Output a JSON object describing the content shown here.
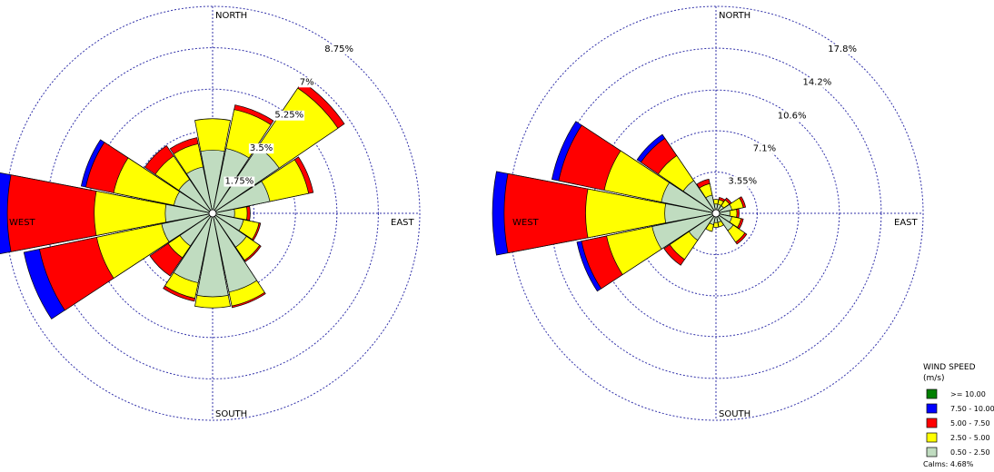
{
  "chart_data": [
    {
      "type": "wind-rose",
      "directions": [
        "N",
        "NNE",
        "NE",
        "ENE",
        "E",
        "ESE",
        "SE",
        "SSE",
        "S",
        "SSW",
        "SW",
        "WSW",
        "W",
        "WNW",
        "NW",
        "NNW"
      ],
      "bins": [
        "0.50 - 2.50",
        "2.50 - 5.00",
        "5.00 - 7.50",
        "7.50 - 10.00",
        ">= 10.00"
      ],
      "rings": [
        {
          "value": 1.75,
          "label": "1.75%"
        },
        {
          "value": 3.5,
          "label": "3.5%"
        },
        {
          "value": 5.25,
          "label": "5.25%"
        },
        {
          "value": 7.0,
          "label": "7%"
        },
        {
          "value": 8.75,
          "label": "8.75%"
        }
      ],
      "compass": {
        "north": "NORTH",
        "south": "SOUTH",
        "east": "EAST",
        "west": "WEST"
      },
      "sectors": [
        {
          "dir": "N",
          "values": [
            2.67,
            1.33,
            0.0,
            0.0,
            0.0
          ]
        },
        {
          "dir": "NNE",
          "values": [
            2.8,
            1.68,
            0.2,
            0.0,
            0.0
          ]
        },
        {
          "dir": "NE",
          "values": [
            3.4,
            3.0,
            0.33,
            0.0,
            0.0
          ]
        },
        {
          "dir": "ENE",
          "values": [
            2.47,
            1.67,
            0.2,
            0.0,
            0.0
          ]
        },
        {
          "dir": "E",
          "values": [
            0.93,
            0.53,
            0.13,
            0.0,
            0.0
          ]
        },
        {
          "dir": "ESE",
          "values": [
            1.33,
            0.67,
            0.07,
            0.0,
            0.0
          ]
        },
        {
          "dir": "SE",
          "values": [
            1.73,
            0.67,
            0.07,
            0.0,
            0.0
          ]
        },
        {
          "dir": "SSE",
          "values": [
            3.4,
            0.6,
            0.07,
            0.0,
            0.0
          ]
        },
        {
          "dir": "S",
          "values": [
            3.53,
            0.47,
            0.0,
            0.0,
            0.0
          ]
        },
        {
          "dir": "SSW",
          "values": [
            3.0,
            0.67,
            0.13,
            0.0,
            0.0
          ]
        },
        {
          "dir": "SW",
          "values": [
            1.67,
            0.6,
            0.93,
            0.0,
            0.0
          ]
        },
        {
          "dir": "WSW",
          "values": [
            2.2,
            2.8,
            2.47,
            0.67,
            0.0
          ]
        },
        {
          "dir": "W",
          "values": [
            2.0,
            3.0,
            3.67,
            0.53,
            0.0
          ]
        },
        {
          "dir": "WNW",
          "values": [
            1.67,
            2.6,
            1.2,
            0.2,
            0.0
          ]
        },
        {
          "dir": "NW",
          "values": [
            1.73,
            1.2,
            0.53,
            0.0,
            0.0
          ]
        },
        {
          "dir": "NNW",
          "values": [
            2.0,
            1.0,
            0.27,
            0.0,
            0.0
          ]
        }
      ]
    },
    {
      "type": "wind-rose",
      "directions": [
        "N",
        "NNE",
        "NE",
        "ENE",
        "E",
        "ESE",
        "SE",
        "SSE",
        "S",
        "SSW",
        "SW",
        "WSW",
        "W",
        "WNW",
        "NW",
        "NNW"
      ],
      "bins": [
        "0.50 - 2.50",
        "2.50 - 5.00",
        "5.00 - 7.50",
        "7.50 - 10.00",
        ">= 10.00"
      ],
      "rings": [
        {
          "value": 3.55,
          "label": "3.55%"
        },
        {
          "value": 7.1,
          "label": "7.1%"
        },
        {
          "value": 10.6,
          "label": "10.6%"
        },
        {
          "value": 14.2,
          "label": "14.2%"
        },
        {
          "value": 17.8,
          "label": "17.8%"
        }
      ],
      "compass": {
        "north": "NORTH",
        "south": "SOUTH",
        "east": "EAST",
        "west": "WEST"
      },
      "sectors": [
        {
          "dir": "N",
          "values": [
            0.8,
            0.4,
            0.0,
            0.0,
            0.0
          ]
        },
        {
          "dir": "NNE",
          "values": [
            0.8,
            0.4,
            0.2,
            0.0,
            0.0
          ]
        },
        {
          "dir": "NE",
          "values": [
            0.8,
            0.6,
            0.2,
            0.0,
            0.0
          ]
        },
        {
          "dir": "ENE",
          "values": [
            1.4,
            1.0,
            0.2,
            0.0,
            0.0
          ]
        },
        {
          "dir": "E",
          "values": [
            1.2,
            0.6,
            0.2,
            0.0,
            0.0
          ]
        },
        {
          "dir": "ESE",
          "values": [
            1.4,
            0.8,
            0.2,
            0.0,
            0.0
          ]
        },
        {
          "dir": "SE",
          "values": [
            1.8,
            1.2,
            0.2,
            0.0,
            0.0
          ]
        },
        {
          "dir": "SSE",
          "values": [
            0.8,
            0.4,
            0.0,
            0.0,
            0.0
          ]
        },
        {
          "dir": "S",
          "values": [
            0.8,
            0.4,
            0.0,
            0.0,
            0.0
          ]
        },
        {
          "dir": "SSW",
          "values": [
            1.0,
            0.6,
            0.0,
            0.0,
            0.0
          ]
        },
        {
          "dir": "SW",
          "values": [
            2.8,
            2.0,
            0.6,
            0.0,
            0.0
          ]
        },
        {
          "dir": "WSW",
          "values": [
            5.6,
            4.0,
            2.2,
            0.4,
            0.0
          ]
        },
        {
          "dir": "W",
          "values": [
            4.4,
            6.8,
            7.0,
            1.0,
            0.0
          ]
        },
        {
          "dir": "WNW",
          "values": [
            4.8,
            5.0,
            4.0,
            0.6,
            0.0
          ]
        },
        {
          "dir": "NW",
          "values": [
            3.4,
            2.6,
            1.8,
            0.4,
            0.0
          ]
        },
        {
          "dir": "NNW",
          "values": [
            1.6,
            1.0,
            0.4,
            0.0,
            0.0
          ]
        }
      ]
    }
  ],
  "legend": {
    "title": "WIND SPEED",
    "unit": "(m/s)",
    "items": [
      {
        "label": ">= 10.00",
        "color": "#008000"
      },
      {
        "label": "7.50 - 10.00",
        "color": "#0000ff"
      },
      {
        "label": "5.00 - 7.50",
        "color": "#ff0000"
      },
      {
        "label": "2.50 - 5.00",
        "color": "#ffff00"
      },
      {
        "label": "0.50 - 2.50",
        "color": "#c0dcc0"
      }
    ],
    "calms": "Calms: 4.68%"
  },
  "colors": {
    "grid": "#3333aa",
    "bins": [
      "#c0dcc0",
      "#ffff00",
      "#ff0000",
      "#0000ff",
      "#008000"
    ]
  }
}
